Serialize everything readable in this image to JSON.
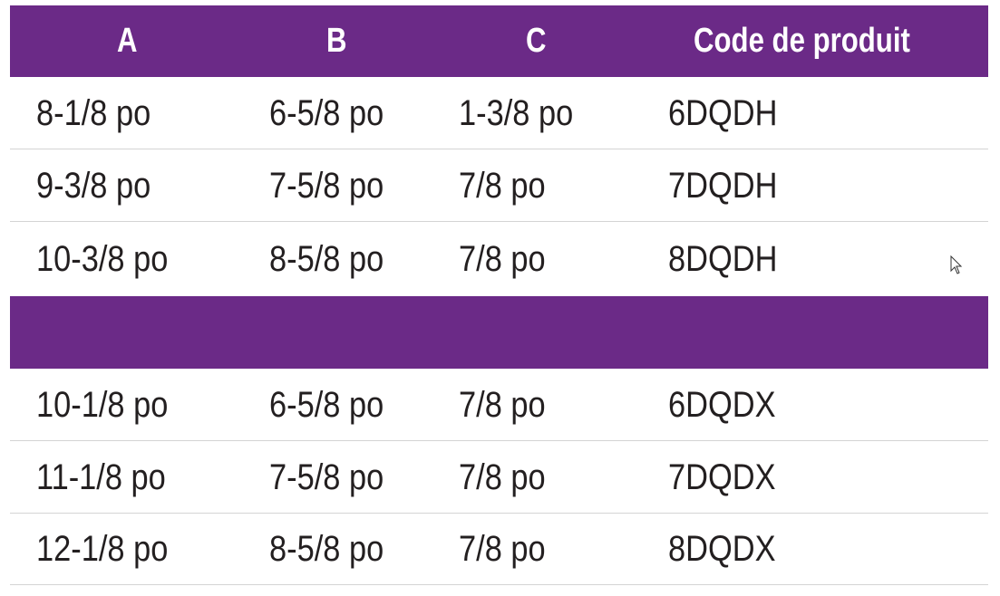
{
  "header": [
    "A",
    "B",
    "C",
    "Code de produit"
  ],
  "group1": [
    [
      "8-1/8 po",
      "6-5/8 po",
      "1-3/8 po",
      "6DQDH"
    ],
    [
      "9-3/8 po",
      "7-5/8 po",
      "7/8 po",
      "7DQDH"
    ],
    [
      "10-3/8 po",
      "8-5/8 po",
      "7/8 po",
      "8DQDH"
    ]
  ],
  "group2": [
    [
      "10-1/8 po",
      "6-5/8 po",
      "7/8 po",
      "6DQDX"
    ],
    [
      "11-1/8 po",
      "7-5/8 po",
      "7/8 po",
      "7DQDX"
    ],
    [
      "12-1/8 po",
      "8-5/8 po",
      "7/8 po",
      "8DQDX"
    ]
  ],
  "colors": {
    "accent": "#6b2a87",
    "text": "#231f20",
    "rule": "#d4d4d4"
  },
  "icons": [
    "mouse-cursor-icon"
  ]
}
